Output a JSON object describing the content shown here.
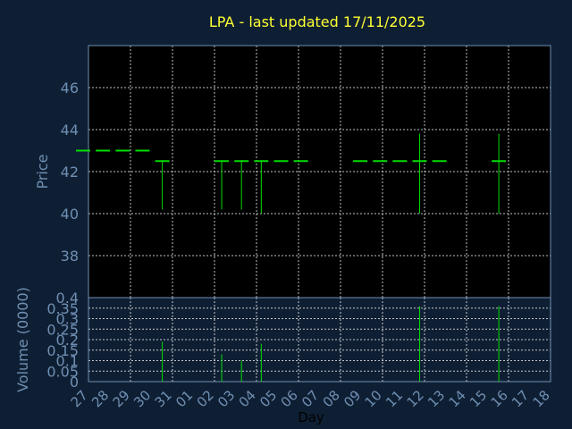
{
  "chart_data": [
    {
      "type": "ohlc",
      "title": "LPA - last updated 17/11/2025",
      "ylabel": "Price",
      "ylim": [
        36,
        48
      ],
      "yticks": [
        38,
        40,
        42,
        44,
        46
      ],
      "grid": true,
      "x": [
        "27",
        "28",
        "29",
        "30",
        "31",
        "01",
        "02",
        "03",
        "04",
        "05",
        "06",
        "07",
        "08",
        "09",
        "10",
        "11",
        "12",
        "13",
        "14",
        "15",
        "16",
        "17",
        "18"
      ],
      "bars": [
        {
          "day": "27",
          "close": 43.0
        },
        {
          "day": "28",
          "close": 43.0
        },
        {
          "day": "29",
          "close": 43.0
        },
        {
          "day": "30",
          "close": 43.0
        },
        {
          "day": "31",
          "high": 42.5,
          "low": 40.2,
          "close": 42.5
        },
        {
          "day": "03",
          "high": 42.5,
          "low": 40.2,
          "close": 42.5
        },
        {
          "day": "04",
          "high": 42.5,
          "low": 40.2,
          "close": 42.5
        },
        {
          "day": "05",
          "high": 42.5,
          "low": 40.0,
          "close": 42.5
        },
        {
          "day": "06",
          "close": 42.5
        },
        {
          "day": "07",
          "close": 42.5
        },
        {
          "day": "10",
          "close": 42.5
        },
        {
          "day": "11",
          "close": 42.5
        },
        {
          "day": "12",
          "close": 42.5
        },
        {
          "day": "13",
          "high": 43.8,
          "low": 40.0,
          "close": 42.5
        },
        {
          "day": "14",
          "close": 42.5
        },
        {
          "day": "17",
          "high": 43.8,
          "low": 40.0,
          "close": 42.5
        }
      ]
    },
    {
      "type": "bar",
      "xlabel": "Day",
      "ylabel": "Volume (0000)",
      "ylim": [
        0,
        0.4
      ],
      "yticks": [
        "0",
        "0.05",
        "0.1",
        "0.15",
        "0.2",
        "0.25",
        "0.3",
        "0.35",
        "0.4"
      ],
      "grid": true,
      "x": [
        "27",
        "28",
        "29",
        "30",
        "31",
        "01",
        "02",
        "03",
        "04",
        "05",
        "06",
        "07",
        "08",
        "09",
        "10",
        "11",
        "12",
        "13",
        "14",
        "15",
        "16",
        "17",
        "18"
      ],
      "volumes": [
        {
          "day": "31",
          "value": 0.19
        },
        {
          "day": "03",
          "value": 0.13
        },
        {
          "day": "04",
          "value": 0.1
        },
        {
          "day": "05",
          "value": 0.18
        },
        {
          "day": "13",
          "value": 0.36
        },
        {
          "day": "17",
          "value": 0.36
        }
      ]
    }
  ]
}
